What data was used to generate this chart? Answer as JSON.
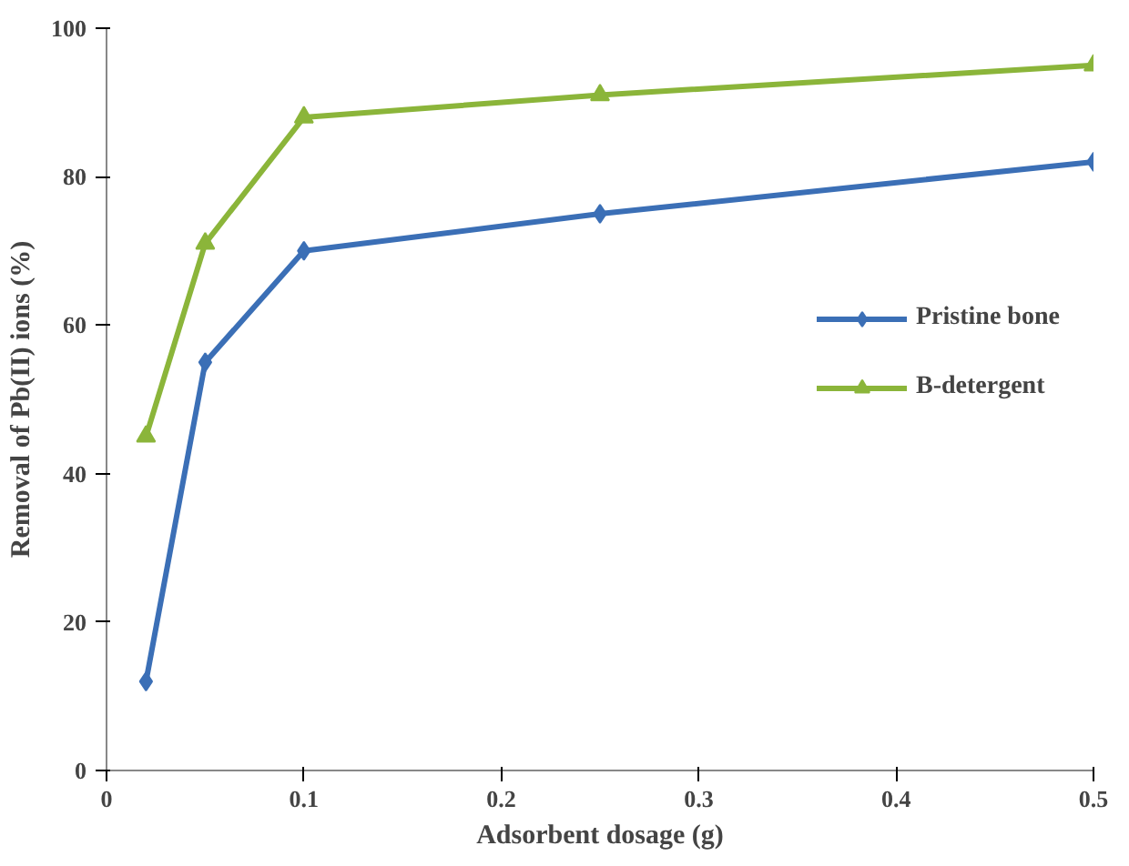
{
  "chart_data": {
    "type": "line",
    "xlabel": "Adsorbent dosage (g)",
    "ylabel": "Removal of Pb(II) ions (%)",
    "xlim": [
      0,
      0.5
    ],
    "xticks": [
      0,
      0.1,
      0.2,
      0.3,
      0.4,
      0.5
    ],
    "ylim": [
      0,
      100
    ],
    "yticks": [
      0,
      20,
      40,
      60,
      80,
      100
    ],
    "grid": false,
    "legend": "right",
    "line_style": "solid",
    "series": [
      {
        "name": "Pristine bone",
        "color": "#3b6fb6",
        "marker": "diamond",
        "x": [
          0.02,
          0.05,
          0.1,
          0.25,
          0.5
        ],
        "values": [
          12,
          55,
          70,
          75,
          82
        ]
      },
      {
        "name": "B-detergent",
        "color": "#8bb53a",
        "marker": "triangle",
        "x": [
          0.02,
          0.05,
          0.1,
          0.25,
          0.5
        ],
        "values": [
          45,
          71,
          88,
          91,
          95
        ]
      }
    ]
  }
}
